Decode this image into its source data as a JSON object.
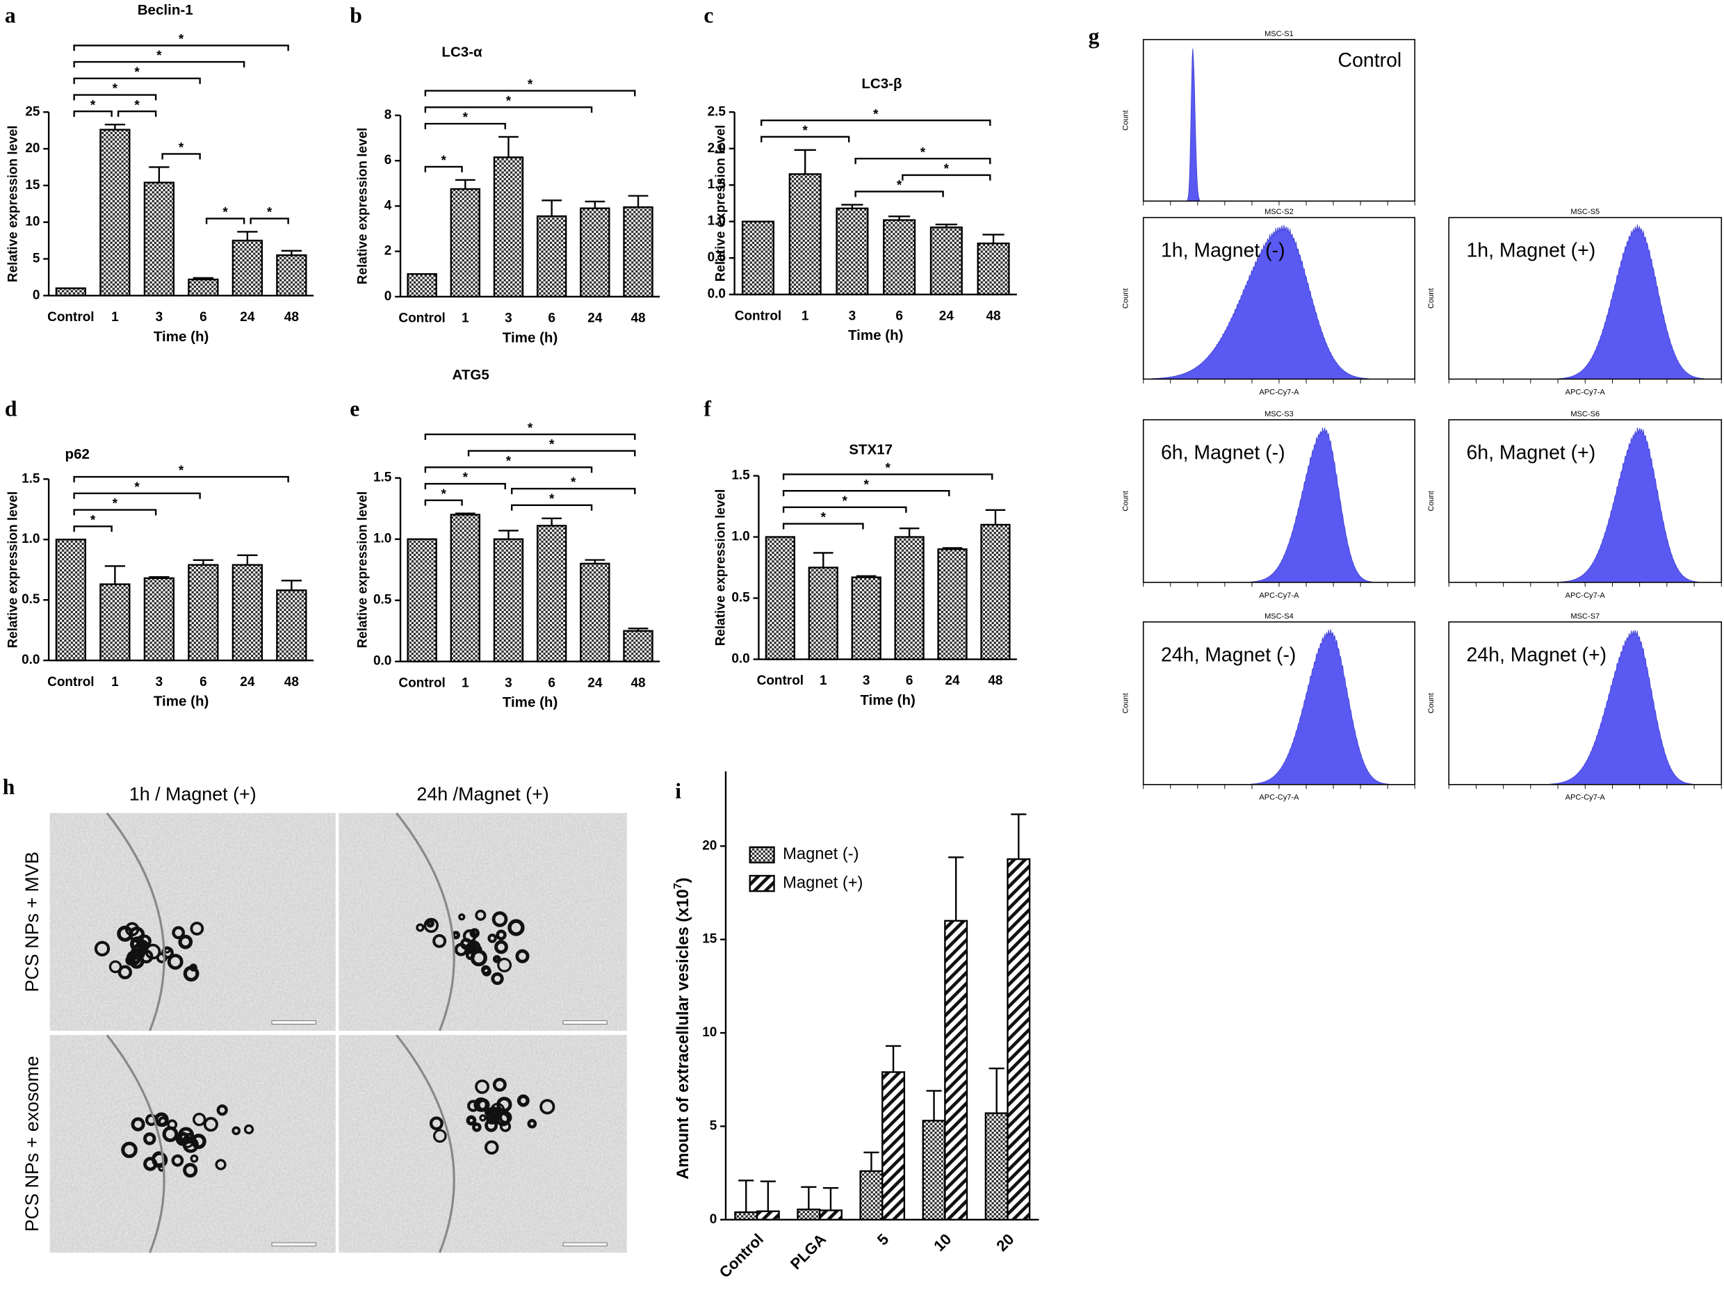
{
  "chart_data": [
    {
      "type": "bar",
      "panel_label": "a",
      "title": "Beclin-1",
      "x_label": "Time (h)",
      "y_label": "Relative expression level",
      "categories": [
        "Control",
        "1",
        "3",
        "6",
        "24",
        "48"
      ],
      "values": [
        1,
        22.6,
        15.4,
        2.2,
        7.5,
        5.5
      ],
      "errors": [
        null,
        0.7,
        2.1,
        0.2,
        1.2,
        0.6
      ],
      "fill_pattern": "checker",
      "ylim": [
        0,
        25
      ],
      "yticks": [
        0,
        5,
        10,
        15,
        20,
        25
      ],
      "brackets": [
        {
          "from": "Control",
          "to": "1",
          "label": "*"
        },
        {
          "from": "1",
          "to": "3",
          "label": "*"
        },
        {
          "from": "3",
          "to": "6",
          "label": "*"
        },
        {
          "from": "6",
          "to": "24",
          "label": "*"
        },
        {
          "from": "24",
          "to": "48",
          "label": "*"
        },
        {
          "from": "Control",
          "to": "3",
          "label": "*"
        },
        {
          "from": "Control",
          "to": "6",
          "label": "*"
        },
        {
          "from": "Control",
          "to": "24",
          "label": "*"
        },
        {
          "from": "Control",
          "to": "48",
          "label": "*"
        }
      ]
    },
    {
      "type": "bar",
      "panel_label": "b",
      "title": "LC3-α",
      "x_label": "Time (h)",
      "y_label": "Relative expression level",
      "categories": [
        "Control",
        "1",
        "3",
        "6",
        "24",
        "48"
      ],
      "values": [
        1,
        4.75,
        6.15,
        3.55,
        3.9,
        3.95
      ],
      "errors": [
        null,
        0.4,
        0.9,
        0.7,
        0.3,
        0.5
      ],
      "fill_pattern": "checker",
      "ylim": [
        0,
        8
      ],
      "yticks": [
        0,
        2,
        4,
        6,
        8
      ],
      "brackets": [
        {
          "from": "Control",
          "to": "1",
          "label": "*"
        },
        {
          "from": "Control",
          "to": "3",
          "label": "*"
        },
        {
          "from": "Control",
          "to": "24",
          "label": "*"
        },
        {
          "from": "Control",
          "to": "48",
          "label": "*"
        }
      ]
    },
    {
      "type": "bar",
      "panel_label": "c",
      "title": "LC3-β",
      "x_label": "Time (h)",
      "y_label": "Relative expression level",
      "categories": [
        "Control",
        "1",
        "3",
        "6",
        "24",
        "48"
      ],
      "values": [
        1,
        1.65,
        1.18,
        1.02,
        0.92,
        0.7
      ],
      "errors": [
        null,
        0.33,
        0.05,
        0.05,
        0.04,
        0.12
      ],
      "fill_pattern": "checker",
      "ylim": [
        0,
        2.5
      ],
      "yticks": [
        {
          "value": 0,
          "label": "0.0"
        },
        {
          "value": 0.5,
          "label": "0.5"
        },
        {
          "value": 1,
          "label": "1.0"
        },
        {
          "value": 1.5,
          "label": "1.5"
        },
        {
          "value": 2,
          "label": "2.0"
        },
        {
          "value": 2.5,
          "label": "2.5"
        }
      ],
      "brackets": [
        {
          "from": "Control",
          "to": "3",
          "label": "*"
        },
        {
          "from": "3",
          "to": "24",
          "label": "*"
        },
        {
          "from": "6",
          "to": "48",
          "label": "*"
        },
        {
          "from": "3",
          "to": "48",
          "label": "*"
        },
        {
          "from": "Control",
          "to": "48",
          "label": "*"
        }
      ]
    },
    {
      "type": "bar",
      "panel_label": "d",
      "title": "p62",
      "x_label": "Time (h)",
      "y_label": "Relative expression level",
      "categories": [
        "Control",
        "1",
        "3",
        "6",
        "24",
        "48"
      ],
      "values": [
        1,
        0.63,
        0.68,
        0.79,
        0.79,
        0.58
      ],
      "errors": [
        null,
        0.15,
        0.01,
        0.04,
        0.08,
        0.08
      ],
      "fill_pattern": "checker",
      "ylim": [
        0,
        1.5
      ],
      "yticks": [
        {
          "value": 0,
          "label": "0.0"
        },
        {
          "value": 0.5,
          "label": "0.5"
        },
        {
          "value": 1,
          "label": "1.0"
        },
        {
          "value": 1.5,
          "label": "1.5"
        }
      ],
      "brackets": [
        {
          "from": "Control",
          "to": "1",
          "label": "*"
        },
        {
          "from": "Control",
          "to": "3",
          "label": "*"
        },
        {
          "from": "Control",
          "to": "6",
          "label": "*"
        },
        {
          "from": "Control",
          "to": "48",
          "label": "*"
        }
      ]
    },
    {
      "type": "bar",
      "panel_label": "e",
      "title": "ATG5",
      "x_label": "Time (h)",
      "y_label": "Relative expression level",
      "categories": [
        "Control",
        "1",
        "3",
        "6",
        "24",
        "48"
      ],
      "values": [
        1,
        1.2,
        1.0,
        1.11,
        0.8,
        0.25
      ],
      "errors": [
        null,
        0.01,
        0.07,
        0.06,
        0.03,
        0.02
      ],
      "fill_pattern": "checker",
      "ylim": [
        0,
        1.5
      ],
      "yticks": [
        {
          "value": 0,
          "label": "0.0"
        },
        {
          "value": 0.5,
          "label": "0.5"
        },
        {
          "value": 1,
          "label": "1.0"
        },
        {
          "value": 1.5,
          "label": "1.5"
        }
      ],
      "brackets": [
        {
          "from": "Control",
          "to": "1",
          "label": "*"
        },
        {
          "from": "3",
          "to": "24",
          "label": "*"
        },
        {
          "from": "Control",
          "to": "3",
          "label": "*"
        },
        {
          "from": "3",
          "to": "48",
          "label": "*"
        },
        {
          "from": "1",
          "to": "48",
          "label": "*"
        },
        {
          "from": "Control",
          "to": "24",
          "label": "*"
        },
        {
          "from": "Control",
          "to": "48",
          "label": "*"
        }
      ]
    },
    {
      "type": "bar",
      "panel_label": "f",
      "title": "STX17",
      "x_label": "Time (h)",
      "y_label": "Relative expression level",
      "categories": [
        "Control",
        "1",
        "3",
        "6",
        "24",
        "48"
      ],
      "values": [
        1,
        0.75,
        0.67,
        1.0,
        0.9,
        1.1
      ],
      "errors": [
        null,
        0.12,
        0.01,
        0.07,
        0.01,
        0.12
      ],
      "fill_pattern": "checker",
      "ylim": [
        0,
        1.5
      ],
      "yticks": [
        {
          "value": 0,
          "label": "0.0"
        },
        {
          "value": 0.5,
          "label": "0.5"
        },
        {
          "value": 1,
          "label": "1.0"
        },
        {
          "value": 1.5,
          "label": "1.5"
        }
      ],
      "brackets": [
        {
          "from": "Control",
          "to": "3",
          "label": "*"
        },
        {
          "from": "Control",
          "to": "6",
          "label": "*"
        },
        {
          "from": "Control",
          "to": "24",
          "label": "*"
        },
        {
          "from": "Control",
          "to": "48",
          "label": "*"
        }
      ]
    },
    {
      "type": "grouped_bar",
      "panel_label": "i",
      "y_label": "Amount of extracellular vesicles (x10",
      "y_label_exponent": "7",
      "y_label_end": ")",
      "categories": [
        "Control",
        "PLGA",
        "5",
        "10",
        "20"
      ],
      "series": [
        {
          "name": "Magnet (-)",
          "fill_pattern": "checker",
          "values": [
            0.4,
            0.55,
            2.6,
            5.3,
            5.7
          ],
          "errors": [
            1.7,
            1.2,
            1.0,
            1.6,
            2.4
          ]
        },
        {
          "name": "Magnet (+)",
          "fill_pattern": "diagonal",
          "values": [
            0.45,
            0.5,
            7.9,
            16,
            19.3
          ],
          "errors": [
            1.6,
            1.2,
            1.4,
            3.4,
            2.4
          ]
        }
      ],
      "ylim": [
        0,
        24
      ],
      "yticks": [
        0,
        5,
        10,
        15,
        20
      ],
      "legend": "upper left"
    }
  ],
  "flow_cytometry": {
    "panel_label": "g",
    "color": "#5a5af2",
    "panels": [
      {
        "sample": "MSC-S1",
        "title": "Control",
        "y_label": "Count"
      },
      {
        "sample": "MSC-S2",
        "title": "1h, Magnet (-)",
        "y_label": "Count",
        "x_label": "APC-Cy7-A"
      },
      {
        "sample": "MSC-S5",
        "title": "1h, Magnet (+)",
        "y_label": "Count",
        "x_label": "APC-Cy7-A"
      },
      {
        "sample": "MSC-S3",
        "title": "6h, Magnet (-)",
        "y_label": "Count",
        "x_label": "APC-Cy7-A"
      },
      {
        "sample": "MSC-S6",
        "title": "6h, Magnet (+)",
        "y_label": "Count",
        "x_label": "APC-Cy7-A"
      },
      {
        "sample": "MSC-S4",
        "title": "24h, Magnet (-)",
        "y_label": "Count",
        "x_label": "APC-Cy7-A"
      },
      {
        "sample": "MSC-S7",
        "title": "24h, Magnet (+)",
        "y_label": "Count",
        "x_label": "APC-Cy7-A"
      }
    ]
  },
  "micrographs": {
    "panel_label": "h",
    "columns": [
      "1h / Magnet (+)",
      "24h /Magnet (+)"
    ],
    "rows": [
      "PCS NPs + MVB",
      "PCS NPs + exosome"
    ]
  }
}
